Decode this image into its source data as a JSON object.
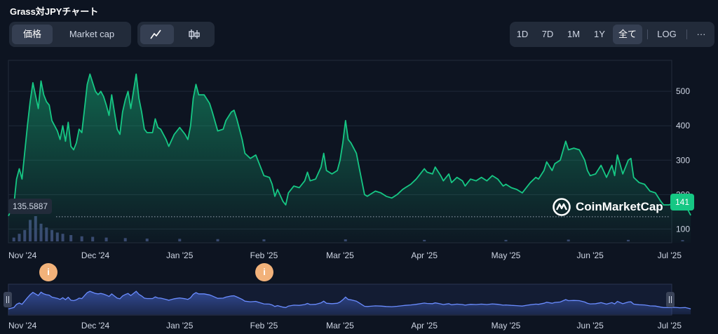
{
  "title": "Grass対JPYチャート",
  "toggle": {
    "price": "価格",
    "market_cap": "Market cap"
  },
  "chart_modes": [
    "line-chart-icon",
    "candlestick-icon"
  ],
  "ranges": [
    "1D",
    "7D",
    "1M",
    "1Y",
    "全て"
  ],
  "active_range": "全て",
  "log_label": "LOG",
  "more_label": "···",
  "reference_price": "135.5887",
  "last_price": "141",
  "watermark": "CoinMarketCap",
  "event_markers": [
    {
      "label": "i",
      "date": "2024-11-05"
    },
    {
      "label": "i",
      "date": "2025-02-01"
    }
  ],
  "colors": {
    "background": "#0d1421",
    "line": "#16c784",
    "badge": "#16c784",
    "volume": "#3a4770",
    "navigator": "#4b6fe0",
    "marker": "#f2b27a"
  },
  "chart_data": {
    "type": "area",
    "x_axis": {
      "type": "date",
      "tick_labels": [
        "Nov '24",
        "Dec '24",
        "Jan '25",
        "Feb '25",
        "Mar '25",
        "Apr '25",
        "May '25",
        "Jun '25",
        "Jul '25"
      ],
      "tick_dates": [
        "2024-10-30",
        "2024-12-01",
        "2025-01-01",
        "2025-02-01",
        "2025-03-01",
        "2025-04-01",
        "2025-05-01",
        "2025-06-01",
        "2025-07-01"
      ],
      "range": [
        "2024-10-30",
        "2025-07-01"
      ]
    },
    "y_axis": {
      "ticks": [
        100,
        200,
        300,
        400,
        500
      ],
      "range": [
        60,
        590
      ],
      "position": "right",
      "grid": true
    },
    "series": [
      {
        "values": [
          [
            "2024-10-30",
            138
          ],
          [
            "2024-11-01",
            170
          ],
          [
            "2024-11-02",
            245
          ],
          [
            "2024-11-03",
            275
          ],
          [
            "2024-11-04",
            245
          ],
          [
            "2024-11-06",
            400
          ],
          [
            "2024-11-07",
            470
          ],
          [
            "2024-11-08",
            525
          ],
          [
            "2024-11-10",
            450
          ],
          [
            "2024-11-11",
            530
          ],
          [
            "2024-11-12",
            490
          ],
          [
            "2024-11-13",
            470
          ],
          [
            "2024-11-14",
            460
          ],
          [
            "2024-11-15",
            415
          ],
          [
            "2024-11-17",
            385
          ],
          [
            "2024-11-18",
            360
          ],
          [
            "2024-11-19",
            400
          ],
          [
            "2024-11-20",
            355
          ],
          [
            "2024-11-21",
            410
          ],
          [
            "2024-11-22",
            340
          ],
          [
            "2024-11-23",
            330
          ],
          [
            "2024-11-24",
            350
          ],
          [
            "2024-11-25",
            390
          ],
          [
            "2024-11-26",
            380
          ],
          [
            "2024-11-27",
            450
          ],
          [
            "2024-11-28",
            520
          ],
          [
            "2024-11-29",
            550
          ],
          [
            "2024-12-01",
            500
          ],
          [
            "2024-12-02",
            490
          ],
          [
            "2024-12-03",
            500
          ],
          [
            "2024-12-04",
            485
          ],
          [
            "2024-12-05",
            460
          ],
          [
            "2024-12-06",
            430
          ],
          [
            "2024-12-07",
            490
          ],
          [
            "2024-12-09",
            390
          ],
          [
            "2024-12-10",
            375
          ],
          [
            "2024-12-11",
            440
          ],
          [
            "2024-12-12",
            475
          ],
          [
            "2024-12-13",
            500
          ],
          [
            "2024-12-14",
            450
          ],
          [
            "2024-12-16",
            550
          ],
          [
            "2024-12-17",
            480
          ],
          [
            "2024-12-18",
            440
          ],
          [
            "2024-12-19",
            390
          ],
          [
            "2024-12-20",
            380
          ],
          [
            "2024-12-22",
            380
          ],
          [
            "2024-12-23",
            420
          ],
          [
            "2024-12-24",
            395
          ],
          [
            "2024-12-25",
            390
          ],
          [
            "2024-12-27",
            360
          ],
          [
            "2024-12-28",
            340
          ],
          [
            "2024-12-30",
            375
          ],
          [
            "2025-01-01",
            395
          ],
          [
            "2025-01-03",
            375
          ],
          [
            "2025-01-04",
            360
          ],
          [
            "2025-01-05",
            400
          ],
          [
            "2025-01-06",
            480
          ],
          [
            "2025-01-07",
            520
          ],
          [
            "2025-01-08",
            490
          ],
          [
            "2025-01-10",
            490
          ],
          [
            "2025-01-12",
            465
          ],
          [
            "2025-01-13",
            440
          ],
          [
            "2025-01-15",
            385
          ],
          [
            "2025-01-17",
            390
          ],
          [
            "2025-01-18",
            415
          ],
          [
            "2025-01-20",
            440
          ],
          [
            "2025-01-21",
            445
          ],
          [
            "2025-01-22",
            420
          ],
          [
            "2025-01-24",
            360
          ],
          [
            "2025-01-25",
            320
          ],
          [
            "2025-01-27",
            305
          ],
          [
            "2025-01-29",
            315
          ],
          [
            "2025-01-30",
            295
          ],
          [
            "2025-02-01",
            255
          ],
          [
            "2025-02-03",
            250
          ],
          [
            "2025-02-04",
            230
          ],
          [
            "2025-02-05",
            195
          ],
          [
            "2025-02-06",
            215
          ],
          [
            "2025-02-08",
            180
          ],
          [
            "2025-02-09",
            170
          ],
          [
            "2025-02-10",
            205
          ],
          [
            "2025-02-12",
            225
          ],
          [
            "2025-02-14",
            220
          ],
          [
            "2025-02-16",
            240
          ],
          [
            "2025-02-17",
            265
          ],
          [
            "2025-02-18",
            240
          ],
          [
            "2025-02-20",
            245
          ],
          [
            "2025-02-22",
            280
          ],
          [
            "2025-02-23",
            320
          ],
          [
            "2025-02-24",
            270
          ],
          [
            "2025-02-26",
            260
          ],
          [
            "2025-02-28",
            270
          ],
          [
            "2025-03-01",
            300
          ],
          [
            "2025-03-02",
            350
          ],
          [
            "2025-03-03",
            415
          ],
          [
            "2025-03-04",
            360
          ],
          [
            "2025-03-05",
            350
          ],
          [
            "2025-03-07",
            320
          ],
          [
            "2025-03-08",
            280
          ],
          [
            "2025-03-10",
            200
          ],
          [
            "2025-03-11",
            195
          ],
          [
            "2025-03-12",
            200
          ],
          [
            "2025-03-14",
            210
          ],
          [
            "2025-03-16",
            205
          ],
          [
            "2025-03-18",
            195
          ],
          [
            "2025-03-20",
            190
          ],
          [
            "2025-03-22",
            200
          ],
          [
            "2025-03-24",
            215
          ],
          [
            "2025-03-25",
            220
          ],
          [
            "2025-03-27",
            230
          ],
          [
            "2025-03-29",
            245
          ],
          [
            "2025-03-31",
            265
          ],
          [
            "2025-04-01",
            275
          ],
          [
            "2025-04-02",
            265
          ],
          [
            "2025-04-04",
            260
          ],
          [
            "2025-04-05",
            280
          ],
          [
            "2025-04-07",
            255
          ],
          [
            "2025-04-08",
            240
          ],
          [
            "2025-04-10",
            260
          ],
          [
            "2025-04-11",
            235
          ],
          [
            "2025-04-13",
            250
          ],
          [
            "2025-04-15",
            240
          ],
          [
            "2025-04-16",
            225
          ],
          [
            "2025-04-18",
            245
          ],
          [
            "2025-04-20",
            240
          ],
          [
            "2025-04-22",
            250
          ],
          [
            "2025-04-24",
            240
          ],
          [
            "2025-04-26",
            255
          ],
          [
            "2025-04-28",
            245
          ],
          [
            "2025-04-30",
            225
          ],
          [
            "2025-05-01",
            230
          ],
          [
            "2025-05-03",
            220
          ],
          [
            "2025-05-05",
            215
          ],
          [
            "2025-05-07",
            205
          ],
          [
            "2025-05-09",
            225
          ],
          [
            "2025-05-10",
            235
          ],
          [
            "2025-05-12",
            250
          ],
          [
            "2025-05-13",
            245
          ],
          [
            "2025-05-15",
            270
          ],
          [
            "2025-05-16",
            295
          ],
          [
            "2025-05-18",
            270
          ],
          [
            "2025-05-19",
            290
          ],
          [
            "2025-05-21",
            300
          ],
          [
            "2025-05-23",
            355
          ],
          [
            "2025-05-24",
            330
          ],
          [
            "2025-05-26",
            335
          ],
          [
            "2025-05-28",
            330
          ],
          [
            "2025-05-30",
            300
          ],
          [
            "2025-05-31",
            270
          ],
          [
            "2025-06-01",
            255
          ],
          [
            "2025-06-03",
            260
          ],
          [
            "2025-06-05",
            285
          ],
          [
            "2025-06-07",
            250
          ],
          [
            "2025-06-09",
            285
          ],
          [
            "2025-06-10",
            255
          ],
          [
            "2025-06-11",
            315
          ],
          [
            "2025-06-13",
            260
          ],
          [
            "2025-06-15",
            300
          ],
          [
            "2025-06-16",
            305
          ],
          [
            "2025-06-17",
            250
          ],
          [
            "2025-06-19",
            235
          ],
          [
            "2025-06-21",
            230
          ],
          [
            "2025-06-23",
            210
          ],
          [
            "2025-06-25",
            205
          ],
          [
            "2025-06-27",
            180
          ],
          [
            "2025-06-28",
            170
          ],
          [
            "2025-06-30",
            170
          ],
          [
            "2025-07-02",
            175
          ],
          [
            "2025-07-04",
            165
          ],
          [
            "2025-07-06",
            170
          ],
          [
            "2025-07-08",
            140
          ]
        ]
      }
    ],
    "volume": [
      [
        "2024-11-01",
        0.15
      ],
      [
        "2024-11-03",
        0.3
      ],
      [
        "2024-11-05",
        0.45
      ],
      [
        "2024-11-07",
        0.85
      ],
      [
        "2024-11-09",
        1.0
      ],
      [
        "2024-11-11",
        0.7
      ],
      [
        "2024-11-13",
        0.55
      ],
      [
        "2024-11-15",
        0.45
      ],
      [
        "2024-11-17",
        0.35
      ],
      [
        "2024-11-19",
        0.3
      ],
      [
        "2024-11-22",
        0.25
      ],
      [
        "2024-11-26",
        0.2
      ],
      [
        "2024-11-30",
        0.18
      ],
      [
        "2024-12-05",
        0.15
      ],
      [
        "2024-12-12",
        0.13
      ],
      [
        "2024-12-20",
        0.11
      ],
      [
        "2025-01-01",
        0.1
      ],
      [
        "2025-01-15",
        0.09
      ],
      [
        "2025-02-01",
        0.08
      ],
      [
        "2025-03-03",
        0.08
      ],
      [
        "2025-04-01",
        0.06
      ],
      [
        "2025-05-01",
        0.06
      ],
      [
        "2025-05-24",
        0.07
      ],
      [
        "2025-06-15",
        0.06
      ],
      [
        "2025-07-05",
        0.05
      ]
    ]
  }
}
